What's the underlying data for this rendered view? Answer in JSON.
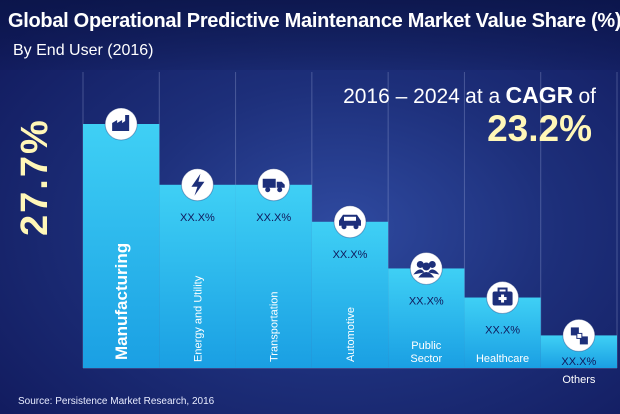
{
  "header": {
    "title": "Global Operational Predictive Maintenance Market Value Share (%)",
    "subtitle": "By End User (2016)"
  },
  "cagr": {
    "years": "2016 – 2024",
    "at_a": "at a",
    "cagr_word": "CAGR",
    "of_word": "of",
    "value": "23.2%"
  },
  "highlight_value": "27.7%",
  "source": "Source: Persistence Market Research, 2016",
  "chart_data": {
    "type": "bar",
    "title": "Global Operational Predictive Maintenance Market Value Share (%)",
    "subtitle": "By End User (2016)",
    "categories": [
      "Manufacturing",
      "Energy and Utility",
      "Transportation",
      "Automotive",
      "Public Sector",
      "Healthcare",
      "Others"
    ],
    "category_lines": [
      [
        "Manufacturing"
      ],
      [
        "Energy and Utility"
      ],
      [
        "Transportation"
      ],
      [
        "Automotive"
      ],
      [
        "Public",
        "Sector"
      ],
      [
        "Healthcare"
      ],
      [
        "Others"
      ]
    ],
    "values": [
      27.7,
      20.8,
      20.8,
      16.6,
      11.3,
      8.0,
      3.7
    ],
    "value_labels": [
      "27.7%",
      "XX.X%",
      "XX.X%",
      "XX.X%",
      "XX.X%",
      "XX.X%",
      "XX.X%"
    ],
    "icons": [
      "factory-icon",
      "lightning-icon",
      "truck-icon",
      "car-icon",
      "people-icon",
      "medical-kit-icon",
      "blocks-icon"
    ],
    "ylim": [
      0,
      30
    ],
    "grid": false,
    "legend": "none",
    "colors": {
      "bar_top": "#3fd0f5",
      "bar_bottom": "#1aa6e6",
      "icon_circle": "#ffffff",
      "icon_fill": "#1d2f7a"
    }
  }
}
